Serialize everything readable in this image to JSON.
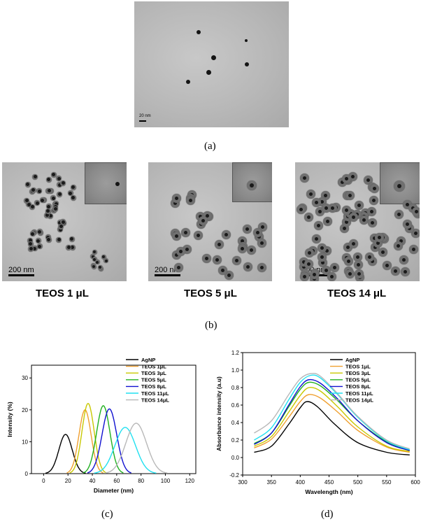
{
  "panel_a": {
    "scalebar_text": "20 nm",
    "caption": "(a)"
  },
  "panel_b": {
    "images": [
      {
        "label": "TEOS 1 μL",
        "scalebar_text": "200 nm"
      },
      {
        "label": "TEOS 5 μL",
        "scalebar_text": "200 nm"
      },
      {
        "label": "TEOS 14 μL",
        "scalebar_text": "200 nm"
      }
    ],
    "caption": "(b)"
  },
  "panel_c": {
    "caption": "(c)"
  },
  "panel_d": {
    "caption": "(d)"
  },
  "colors": {
    "AgNP": "#000000",
    "TEOS 1μL": "#f0a030",
    "TEOS 3μL": "#c8c800",
    "TEOS 5μL": "#20b020",
    "TEOS 8μL": "#1010d0",
    "TEOS 11μL": "#20e0f0",
    "TEOS 14μL": "#b8b8b8"
  },
  "chart_data": [
    {
      "type": "line",
      "xlabel": "Diameter (nm)",
      "ylabel": "Intensity (%)",
      "xlim": [
        -10,
        125
      ],
      "ylim": [
        0,
        34
      ],
      "xticks": [
        0,
        20,
        40,
        60,
        80,
        100,
        120
      ],
      "yticks": [
        0,
        10,
        20,
        30
      ],
      "legend_position": "top-right",
      "series": [
        {
          "name": "AgNP",
          "peak_x": 18,
          "peak_y": 12.3,
          "sigma": 5.5
        },
        {
          "name": "TEOS 1μL",
          "peak_x": 34,
          "peak_y": 20.0,
          "sigma": 5.0
        },
        {
          "name": "TEOS 3μL",
          "peak_x": 36.5,
          "peak_y": 22.0,
          "sigma": 5.0
        },
        {
          "name": "TEOS 5μL",
          "peak_x": 49,
          "peak_y": 21.3,
          "sigma": 5.5
        },
        {
          "name": "TEOS 8μL",
          "peak_x": 54,
          "peak_y": 20.3,
          "sigma": 6.0
        },
        {
          "name": "TEOS 11μL",
          "peak_x": 67,
          "peak_y": 14.5,
          "sigma": 8.5
        },
        {
          "name": "TEOS 14μL",
          "peak_x": 76,
          "peak_y": 15.8,
          "sigma": 8.5
        }
      ]
    },
    {
      "type": "line",
      "xlabel": "Wavelength (nm)",
      "ylabel": "Absorbance intensity (a.u)",
      "xlim": [
        300,
        600
      ],
      "ylim": [
        -0.2,
        1.2
      ],
      "xticks": [
        300,
        350,
        400,
        450,
        500,
        550,
        600
      ],
      "yticks": [
        -0.2,
        0.0,
        0.2,
        0.4,
        0.6,
        0.8,
        1.0,
        1.2
      ],
      "legend_position": "top-right",
      "series": [
        {
          "name": "AgNP",
          "x": [
            320,
            350,
            380,
            400,
            412,
            430,
            460,
            500,
            550,
            590
          ],
          "y": [
            0.06,
            0.13,
            0.38,
            0.57,
            0.64,
            0.58,
            0.38,
            0.17,
            0.06,
            0.03
          ]
        },
        {
          "name": "TEOS 1μL",
          "x": [
            320,
            350,
            380,
            400,
            415,
            435,
            465,
            500,
            550,
            590
          ],
          "y": [
            0.11,
            0.21,
            0.46,
            0.64,
            0.72,
            0.68,
            0.52,
            0.31,
            0.12,
            0.06
          ]
        },
        {
          "name": "TEOS 3μL",
          "x": [
            320,
            350,
            380,
            400,
            415,
            435,
            465,
            500,
            550,
            590
          ],
          "y": [
            0.13,
            0.24,
            0.52,
            0.71,
            0.8,
            0.76,
            0.58,
            0.35,
            0.13,
            0.07
          ]
        },
        {
          "name": "TEOS 5μL",
          "x": [
            320,
            350,
            380,
            400,
            415,
            435,
            465,
            500,
            550,
            590
          ],
          "y": [
            0.16,
            0.28,
            0.58,
            0.78,
            0.86,
            0.82,
            0.65,
            0.42,
            0.18,
            0.08
          ]
        },
        {
          "name": "TEOS 8μL",
          "x": [
            320,
            350,
            380,
            400,
            415,
            435,
            465,
            500,
            550,
            590
          ],
          "y": [
            0.15,
            0.28,
            0.6,
            0.81,
            0.89,
            0.85,
            0.67,
            0.42,
            0.17,
            0.08
          ]
        },
        {
          "name": "TEOS 11μL",
          "x": [
            320,
            350,
            380,
            400,
            418,
            435,
            465,
            500,
            550,
            590
          ],
          "y": [
            0.2,
            0.34,
            0.66,
            0.86,
            0.94,
            0.91,
            0.72,
            0.46,
            0.19,
            0.09
          ]
        },
        {
          "name": "TEOS 14μL",
          "x": [
            320,
            350,
            380,
            400,
            418,
            435,
            465,
            500,
            550,
            590
          ],
          "y": [
            0.28,
            0.42,
            0.72,
            0.9,
            0.96,
            0.93,
            0.73,
            0.47,
            0.2,
            0.1
          ]
        }
      ]
    }
  ]
}
